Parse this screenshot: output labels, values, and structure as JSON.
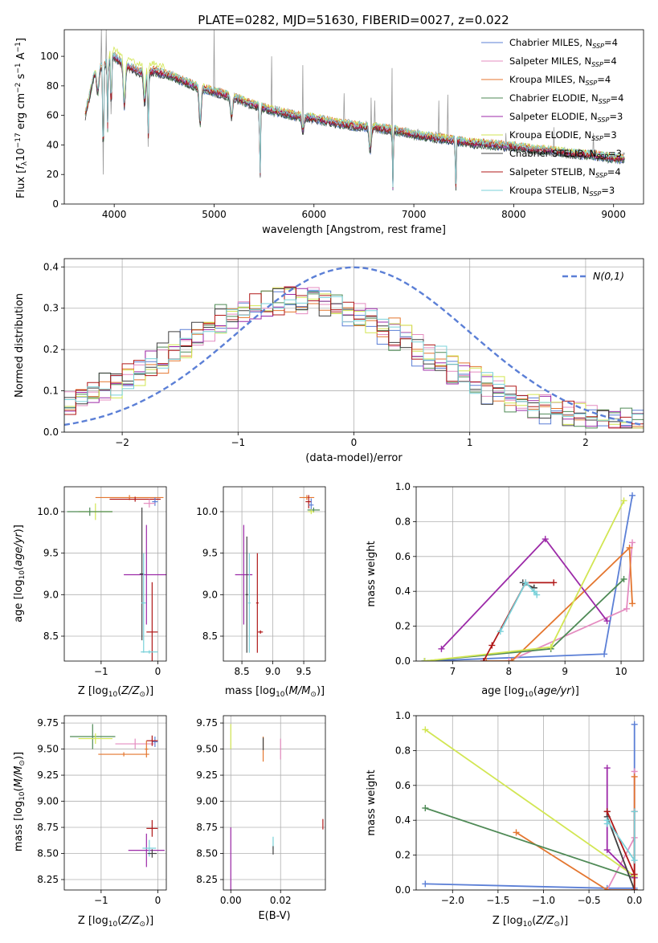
{
  "figure": {
    "title": "PLATE=0282, MJD=51630, FIBERID=0027, z=0.022"
  },
  "colors": {
    "chabrier_miles": "#5b7fd6",
    "salpeter_miles": "#e48cc0",
    "kroupa_miles": "#e4762f",
    "chabrier_elodie": "#4f8a56",
    "salpeter_elodie": "#9c2aa8",
    "kroupa_elodie": "#d2e653",
    "chabrier_stelib": "#404040",
    "salpeter_stelib": "#b01818",
    "kroupa_stelib": "#79d1d9",
    "data": "#9a9a9a",
    "gaussian": "#5b7fd6"
  },
  "chart_data": [
    {
      "id": "spectrum",
      "type": "line",
      "xlabel": "wavelength [Angstrom, rest frame]",
      "ylabel": "Flux [f_λ 10^-17 erg cm^-2 s^-1 A^-1]",
      "xlim": [
        3500,
        9300
      ],
      "ylim": [
        0,
        118
      ],
      "xticks": [
        4000,
        5000,
        6000,
        7000,
        8000,
        9000
      ],
      "yticks": [
        0,
        20,
        40,
        60,
        80,
        100
      ],
      "grid": false,
      "legend_position": "top-right",
      "legend": [
        {
          "label": "Chabrier MILES, N_SSP=4",
          "color": "#5b7fd6"
        },
        {
          "label": "Salpeter MILES, N_SSP=4",
          "color": "#e48cc0"
        },
        {
          "label": "Kroupa MILES, N_SSP=4",
          "color": "#e4762f"
        },
        {
          "label": "Chabrier ELODIE, N_SSP=4",
          "color": "#4f8a56"
        },
        {
          "label": "Salpeter ELODIE, N_SSP=3",
          "color": "#9c2aa8"
        },
        {
          "label": "Kroupa ELODIE, N_SSP=3",
          "color": "#d2e653"
        },
        {
          "label": "Chabrier STELIB, N_SSP=3",
          "color": "#404040"
        },
        {
          "label": "Salpeter STELIB, N_SSP=4",
          "color": "#b01818"
        },
        {
          "label": "Kroupa STELIB, N_SSP=3",
          "color": "#79d1d9"
        }
      ],
      "continuum": {
        "x": [
          3710,
          3800,
          3900,
          4000,
          4100,
          4200,
          4300,
          4400,
          4600,
          4800,
          5000,
          5200,
          5400,
          5600,
          5800,
          6000,
          6200,
          6400,
          6600,
          6800,
          7000,
          7200,
          7400,
          7600,
          7800,
          8000,
          8200,
          8400,
          8600,
          8800,
          9000,
          9100
        ],
        "y": [
          60,
          88,
          94,
          100,
          94,
          91,
          88,
          90,
          86,
          80,
          76,
          72,
          67,
          63,
          60,
          58,
          55,
          53,
          52,
          50,
          47,
          45,
          43,
          41,
          40,
          39,
          37,
          36,
          34,
          33,
          31,
          31
        ]
      },
      "absorption_features": [
        {
          "x": 3835,
          "depth": 18
        },
        {
          "x": 3890,
          "depth": 95
        },
        {
          "x": 3934,
          "depth": 55
        },
        {
          "x": 3970,
          "depth": 50
        },
        {
          "x": 4102,
          "depth": 35
        },
        {
          "x": 4305,
          "depth": 25
        },
        {
          "x": 4340,
          "depth": 60
        },
        {
          "x": 4861,
          "depth": 30
        },
        {
          "x": 5175,
          "depth": 18
        },
        {
          "x": 5460,
          "depth": 64
        },
        {
          "x": 5890,
          "depth": 12
        },
        {
          "x": 6563,
          "depth": 20
        },
        {
          "x": 6790,
          "depth": 48
        },
        {
          "x": 7420,
          "depth": 43
        }
      ],
      "emission_spikes": [
        {
          "x": 3870,
          "height": 118
        },
        {
          "x": 3920,
          "height": 118
        },
        {
          "x": 5000,
          "height": 118
        },
        {
          "x": 5577,
          "height": 100
        },
        {
          "x": 5890,
          "height": 94
        },
        {
          "x": 6300,
          "height": 75
        },
        {
          "x": 6570,
          "height": 72
        },
        {
          "x": 6610,
          "height": 70
        },
        {
          "x": 6780,
          "height": 92
        },
        {
          "x": 7250,
          "height": 70
        },
        {
          "x": 7340,
          "height": 74
        },
        {
          "x": 7920,
          "height": 48
        },
        {
          "x": 8400,
          "height": 52
        },
        {
          "x": 8800,
          "height": 48
        }
      ]
    },
    {
      "id": "residuals",
      "type": "step-histogram",
      "xlabel": "(data-model)/error",
      "ylabel": "Normed distribution",
      "xlim": [
        -2.5,
        2.5
      ],
      "ylim": [
        0,
        0.42
      ],
      "xticks": [
        -2,
        -1,
        0,
        1,
        2
      ],
      "yticks": [
        0.0,
        0.1,
        0.2,
        0.3,
        0.4
      ],
      "grid": true,
      "legend_position": "top-right",
      "gaussian_label": "N(0,1)",
      "bin_width": 0.1
    },
    {
      "id": "age_vs_Z",
      "type": "errorbar",
      "xlabel": "Z [log10(Z/Z⊙)]",
      "ylabel": "age [log10(age/yr)]",
      "xlim": [
        -1.65,
        0.15
      ],
      "ylim": [
        8.2,
        10.3
      ],
      "xticks": [
        -1,
        0
      ],
      "yticks": [
        8.5,
        9.0,
        9.5,
        10.0
      ],
      "grid": true,
      "points": [
        {
          "x": -1.1,
          "y": 10.0,
          "xerr": 0.3,
          "yerr": 0.1,
          "color": "#d2e653"
        },
        {
          "x": -1.2,
          "y": 10.0,
          "xerr": 0.4,
          "yerr": 0.05,
          "color": "#4f8a56"
        },
        {
          "x": -0.5,
          "y": 10.17,
          "xerr": 0.6,
          "yerr": 0.03,
          "color": "#e4762f"
        },
        {
          "x": -0.4,
          "y": 10.15,
          "xerr": 0.45,
          "yerr": 0.03,
          "color": "#b01818"
        },
        {
          "x": -0.05,
          "y": 10.12,
          "xerr": 0.05,
          "yerr": 0.05,
          "color": "#5b7fd6"
        },
        {
          "x": -0.15,
          "y": 10.1,
          "xerr": 0.1,
          "yerr": 0.05,
          "color": "#e48cc0"
        },
        {
          "x": -0.2,
          "y": 9.24,
          "xerr": 0.4,
          "yerr": 0.6,
          "color": "#9c2aa8"
        },
        {
          "x": -0.28,
          "y": 9.25,
          "xerr": 0.04,
          "yerr": 0.8,
          "color": "#404040"
        },
        {
          "x": -0.25,
          "y": 8.9,
          "xerr": 0.04,
          "yerr": 0.6,
          "color": "#79d1d9"
        },
        {
          "x": -0.1,
          "y": 8.55,
          "xerr": 0.1,
          "yerr": 0.6,
          "color": "#b01818"
        },
        {
          "x": -0.15,
          "y": 8.31,
          "xerr": 0.15,
          "yerr": 0.02,
          "color": "#79d1d9"
        }
      ]
    },
    {
      "id": "age_vs_mass",
      "type": "errorbar",
      "xlabel": "mass [log10(M/M⊙)]",
      "xlim": [
        8.2,
        9.85
      ],
      "ylim": [
        8.2,
        10.3
      ],
      "xticks": [
        8.5,
        9.0,
        9.5
      ],
      "yticks": [
        8.5,
        9.0,
        9.5,
        10.0
      ],
      "grid": true,
      "points": [
        {
          "x": 9.55,
          "y": 10.17,
          "xerr": 0.12,
          "yerr": 0.03,
          "color": "#e4762f"
        },
        {
          "x": 9.58,
          "y": 10.12,
          "xerr": 0.05,
          "yerr": 0.08,
          "color": "#b01818"
        },
        {
          "x": 9.62,
          "y": 10.08,
          "xerr": 0.04,
          "yerr": 0.08,
          "color": "#5b7fd6"
        },
        {
          "x": 9.66,
          "y": 10.02,
          "xerr": 0.1,
          "yerr": 0.03,
          "color": "#4f8a56"
        },
        {
          "x": 9.62,
          "y": 10.0,
          "xerr": 0.05,
          "yerr": 0.03,
          "color": "#d2e653"
        },
        {
          "x": 8.53,
          "y": 9.24,
          "xerr": 0.14,
          "yerr": 0.6,
          "color": "#9c2aa8"
        },
        {
          "x": 8.58,
          "y": 9.0,
          "xerr": 0.02,
          "yerr": 0.7,
          "color": "#404040"
        },
        {
          "x": 8.62,
          "y": 8.9,
          "xerr": 0.02,
          "yerr": 0.6,
          "color": "#79d1d9"
        },
        {
          "x": 8.75,
          "y": 8.9,
          "xerr": 0.02,
          "yerr": 0.6,
          "color": "#b01818"
        },
        {
          "x": 8.8,
          "y": 8.55,
          "xerr": 0.04,
          "yerr": 0.02,
          "color": "#b01818"
        }
      ]
    },
    {
      "id": "weight_vs_age",
      "type": "line",
      "xlabel": "age [log10(age/yr)]",
      "ylabel": "mass weight",
      "xlim": [
        6.35,
        10.4
      ],
      "ylim": [
        0,
        1
      ],
      "xticks": [
        7,
        8,
        9,
        10
      ],
      "yticks": [
        0.0,
        0.2,
        0.4,
        0.6,
        0.8,
        1.0
      ],
      "grid": true,
      "series": [
        {
          "color": "#5b7fd6",
          "x": [
            6.5,
            9.7,
            10.2
          ],
          "y": [
            0.0,
            0.04,
            0.95
          ]
        },
        {
          "color": "#e48cc0",
          "x": [
            8.0,
            10.1,
            10.2
          ],
          "y": [
            0.0,
            0.3,
            0.68
          ]
        },
        {
          "color": "#e4762f",
          "x": [
            7.6,
            8.05,
            10.15,
            10.2
          ],
          "y": [
            0.0,
            0.0,
            0.65,
            0.33
          ]
        },
        {
          "color": "#4f8a56",
          "x": [
            6.5,
            8.75,
            10.05
          ],
          "y": [
            0.0,
            0.07,
            0.47
          ]
        },
        {
          "color": "#9c2aa8",
          "x": [
            6.8,
            8.65,
            9.75
          ],
          "y": [
            0.07,
            0.7,
            0.23
          ]
        },
        {
          "color": "#d2e653",
          "x": [
            6.5,
            8.75,
            10.05
          ],
          "y": [
            0.0,
            0.08,
            0.92
          ]
        },
        {
          "color": "#404040",
          "x": [
            8.25,
            8.45,
            8.45
          ],
          "y": [
            0.45,
            0.42,
            0.42
          ]
        },
        {
          "color": "#b01818",
          "x": [
            7.55,
            7.7,
            8.3,
            8.8
          ],
          "y": [
            0.0,
            0.09,
            0.45,
            0.45
          ]
        },
        {
          "color": "#79d1d9",
          "x": [
            7.85,
            8.3,
            8.45,
            8.5
          ],
          "y": [
            0.17,
            0.45,
            0.4,
            0.38
          ]
        }
      ]
    },
    {
      "id": "mass_vs_Z",
      "type": "errorbar",
      "xlabel": "Z [log10(Z/Z⊙)]",
      "ylabel": "mass [log10(M/M⊙)]",
      "xlim": [
        -1.65,
        0.15
      ],
      "ylim": [
        8.15,
        9.82
      ],
      "xticks": [
        -1,
        0
      ],
      "yticks": [
        8.25,
        8.5,
        8.75,
        9.0,
        9.25,
        9.5,
        9.75
      ],
      "grid": true,
      "points": [
        {
          "x": -1.15,
          "y": 9.62,
          "xerr": 0.4,
          "yerr": 0.12,
          "color": "#4f8a56"
        },
        {
          "x": -1.1,
          "y": 9.6,
          "xerr": 0.3,
          "yerr": 0.05,
          "color": "#d2e653"
        },
        {
          "x": -0.05,
          "y": 9.57,
          "xerr": 0.05,
          "yerr": 0.05,
          "color": "#5b7fd6"
        },
        {
          "x": -0.4,
          "y": 9.55,
          "xerr": 0.35,
          "yerr": 0.05,
          "color": "#e48cc0"
        },
        {
          "x": -0.1,
          "y": 9.58,
          "xerr": 0.1,
          "yerr": 0.05,
          "color": "#b01818"
        },
        {
          "x": -0.6,
          "y": 9.45,
          "xerr": 0.45,
          "yerr": 0.02,
          "color": "#e4762f"
        },
        {
          "x": -0.2,
          "y": 9.5,
          "xerr": 0.03,
          "yerr": 0.08,
          "color": "#e4762f"
        },
        {
          "x": -0.1,
          "y": 8.74,
          "xerr": 0.1,
          "yerr": 0.08,
          "color": "#b01818"
        },
        {
          "x": -0.2,
          "y": 8.53,
          "xerr": 0.32,
          "yerr": 0.16,
          "color": "#9c2aa8"
        },
        {
          "x": -0.15,
          "y": 8.55,
          "xerr": 0.12,
          "yerr": 0.08,
          "color": "#79d1d9"
        },
        {
          "x": -0.1,
          "y": 8.5,
          "xerr": 0.08,
          "yerr": 0.04,
          "color": "#404040"
        }
      ]
    },
    {
      "id": "mass_vs_ebv",
      "type": "errorbar",
      "xlabel": "E(B-V)",
      "xlim": [
        -0.003,
        0.038
      ],
      "ylim": [
        8.15,
        9.82
      ],
      "xticks": [
        0.0,
        0.02
      ],
      "yticks": [
        8.25,
        8.5,
        8.75,
        9.0,
        9.25,
        9.5,
        9.75
      ],
      "grid": true,
      "points": [
        {
          "x": 0.0,
          "y": 9.62,
          "xerr": 0.0,
          "yerr": 0.12,
          "color": "#d2e653"
        },
        {
          "x": 0.0,
          "y": 8.45,
          "xerr": 0.0,
          "yerr": 0.3,
          "color": "#9c2aa8"
        },
        {
          "x": 0.013,
          "y": 9.5,
          "xerr": 0.0,
          "yerr": 0.12,
          "color": "#e4762f"
        },
        {
          "x": 0.013,
          "y": 9.55,
          "xerr": 0.0,
          "yerr": 0.06,
          "color": "#404040"
        },
        {
          "x": 0.02,
          "y": 9.5,
          "xerr": 0.0,
          "yerr": 0.1,
          "color": "#e48cc0"
        },
        {
          "x": 0.017,
          "y": 8.6,
          "xerr": 0.0,
          "yerr": 0.06,
          "color": "#79d1d9"
        },
        {
          "x": 0.017,
          "y": 8.53,
          "xerr": 0.0,
          "yerr": 0.04,
          "color": "#404040"
        },
        {
          "x": 0.037,
          "y": 8.78,
          "xerr": 0.0,
          "yerr": 0.05,
          "color": "#b01818"
        }
      ]
    },
    {
      "id": "weight_vs_Z",
      "type": "line",
      "xlabel": "Z [log10(Z/Z⊙)]",
      "ylabel": "mass weight",
      "xlim": [
        -2.4,
        0.1
      ],
      "ylim": [
        0,
        1
      ],
      "xticks": [
        -2.0,
        -1.5,
        -1.0,
        -0.5,
        0.0
      ],
      "yticks": [
        0.0,
        0.2,
        0.4,
        0.6,
        0.8,
        1.0
      ],
      "grid": true,
      "series": [
        {
          "color": "#5b7fd6",
          "x": [
            -2.3,
            -0.3,
            0.0,
            0.0
          ],
          "y": [
            0.035,
            0.01,
            0.01,
            0.95
          ]
        },
        {
          "color": "#e48cc0",
          "x": [
            -0.3,
            0.0,
            0.0
          ],
          "y": [
            0.0,
            0.3,
            0.68
          ]
        },
        {
          "color": "#e4762f",
          "x": [
            -1.3,
            -0.3,
            0.0,
            0.0
          ],
          "y": [
            0.33,
            0.0,
            0.0,
            0.65
          ]
        },
        {
          "color": "#4f8a56",
          "x": [
            -2.3,
            0.0,
            0.0
          ],
          "y": [
            0.47,
            0.07,
            0.0
          ]
        },
        {
          "color": "#9c2aa8",
          "x": [
            -0.3,
            -0.3,
            0.0
          ],
          "y": [
            0.7,
            0.23,
            0.07
          ]
        },
        {
          "color": "#d2e653",
          "x": [
            -2.3,
            0.0,
            0.0
          ],
          "y": [
            0.92,
            0.08,
            0.0
          ]
        },
        {
          "color": "#404040",
          "x": [
            -0.3,
            -0.3,
            0.0
          ],
          "y": [
            0.45,
            0.42,
            0.0
          ]
        },
        {
          "color": "#b01818",
          "x": [
            -0.3,
            0.0,
            0.0,
            0.0
          ],
          "y": [
            0.45,
            0.09,
            0.45,
            0.0
          ]
        },
        {
          "color": "#79d1d9",
          "x": [
            -0.3,
            -0.3,
            0.0,
            0.0
          ],
          "y": [
            0.38,
            0.4,
            0.17,
            0.45
          ]
        }
      ]
    }
  ]
}
